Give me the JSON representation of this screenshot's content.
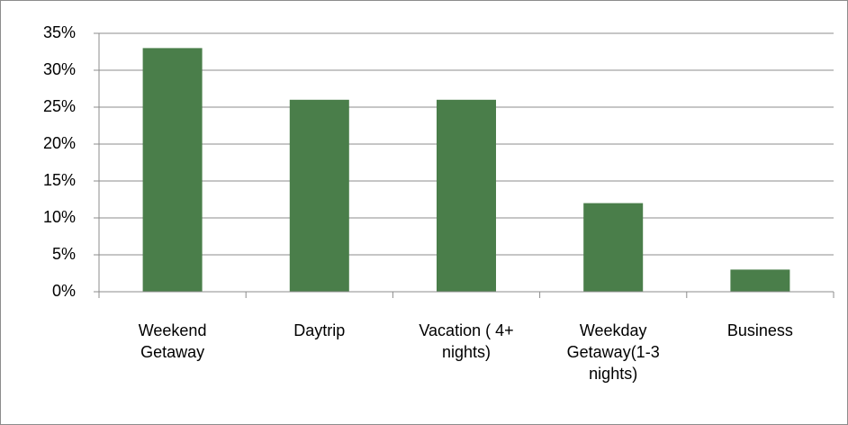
{
  "chart_data": {
    "type": "bar",
    "categories": [
      "Weekend Getaway",
      "Daytrip",
      "Vacation ( 4+ nights)",
      "Weekday Getaway(1-3 nights)",
      "Business"
    ],
    "values": [
      33,
      26,
      26,
      12,
      3
    ],
    "color": "#4a7e4a",
    "ylim": [
      0,
      35
    ],
    "yticks": [
      {
        "value": 0,
        "label": "0%"
      },
      {
        "value": 5,
        "label": "5%"
      },
      {
        "value": 10,
        "label": "10%"
      },
      {
        "value": 15,
        "label": "15%"
      },
      {
        "value": 20,
        "label": "20%"
      },
      {
        "value": 25,
        "label": "25%"
      },
      {
        "value": 30,
        "label": "30%"
      },
      {
        "value": 35,
        "label": "35%"
      }
    ],
    "grid": true
  }
}
